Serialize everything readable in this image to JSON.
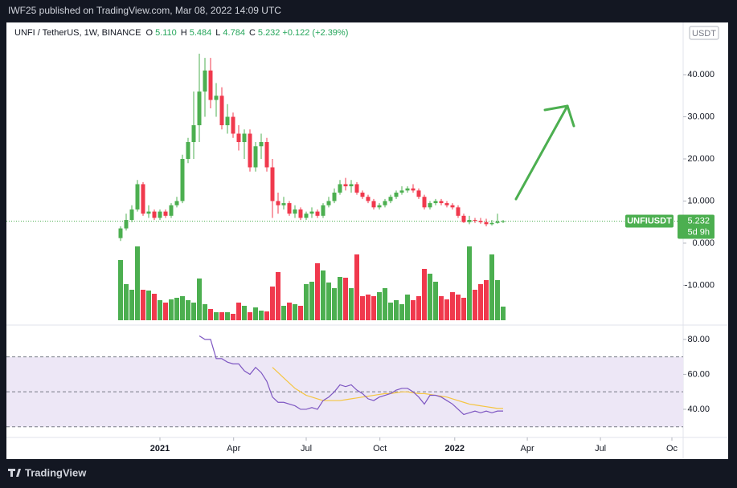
{
  "header": {
    "title": "IWF25 published on TradingView.com, Mar 08, 2022 14:09 UTC"
  },
  "footer": {
    "brand": "TradingView"
  },
  "chart_data": {
    "type": "candlestick",
    "symbol": "UNFI / TetherUS, 1W, BINANCE",
    "currency": "USDT",
    "ohlc_labels": [
      "O",
      "H",
      "L",
      "C"
    ],
    "ohlc": [
      5.11,
      5.484,
      4.784,
      5.232
    ],
    "ohlc_value_labels": [
      "5.110",
      "5.484",
      "4.784",
      "5.232"
    ],
    "change_label": "+0.122 (+2.39%)",
    "price_tag": {
      "name": "UNFIUSDT",
      "countdown": "5d 9h"
    },
    "up_color": "#4caf50",
    "down_color": "#f0394d",
    "open": [
      1.2,
      3.5,
      5.5,
      8,
      14,
      7,
      7.5,
      6,
      7.5,
      6.5,
      9,
      10,
      20,
      24,
      28,
      36,
      41,
      34,
      35,
      28,
      30,
      26,
      24,
      26,
      18,
      23,
      24,
      18,
      10,
      9,
      9.5,
      7,
      8,
      6,
      7,
      7.5,
      6.5,
      9,
      10,
      12,
      14,
      13.5,
      14,
      12,
      11,
      10,
      8.5,
      9,
      10,
      11,
      12,
      12.5,
      13,
      12.5,
      11,
      8.5,
      9.5,
      10,
      9.5,
      9,
      8.5,
      6.5,
      5,
      5.5,
      5.3,
      5,
      4.5,
      4.8,
      5.11
    ],
    "high": [
      4,
      7,
      9,
      15,
      14.5,
      9,
      8,
      8,
      8,
      9.5,
      11,
      21,
      25,
      36,
      45,
      44,
      44,
      38,
      37,
      33,
      31,
      28,
      27,
      27,
      24,
      26,
      25,
      20,
      12,
      11,
      10,
      9,
      8.5,
      7.5,
      8.5,
      8,
      9.5,
      11,
      13,
      15,
      15.5,
      15,
      14.5,
      12.5,
      11.5,
      10.5,
      9.5,
      10.5,
      11.5,
      12.5,
      13.5,
      13.5,
      14,
      13,
      11.5,
      10,
      10.5,
      10.5,
      10,
      9.5,
      9,
      7,
      6.5,
      6,
      6,
      5.8,
      5.5,
      7,
      5.484
    ],
    "low": [
      0.5,
      3,
      5,
      7.5,
      6.5,
      6,
      5.5,
      5.5,
      6,
      6,
      8.5,
      9.5,
      19,
      20,
      24,
      30,
      32,
      30,
      27,
      26,
      25,
      22,
      20,
      17,
      17,
      20,
      17,
      6,
      7,
      8,
      6.5,
      6,
      5.5,
      5.5,
      6,
      6,
      6,
      8.5,
      9.5,
      11.5,
      12.5,
      12,
      11.5,
      10.5,
      9.5,
      8,
      8,
      8.5,
      9.5,
      10.5,
      11.5,
      12,
      12,
      10.5,
      8,
      8,
      9,
      9,
      8.5,
      8,
      6,
      4.8,
      4.5,
      4.8,
      4.6,
      4,
      4.2,
      4.6,
      4.784
    ],
    "close": [
      3.5,
      5.5,
      8,
      14,
      7,
      7.5,
      6,
      7.5,
      6.5,
      9,
      10,
      20,
      24,
      28,
      36,
      41,
      34,
      35,
      28,
      30,
      26,
      24,
      26,
      18,
      23,
      24,
      18,
      10,
      9,
      9.5,
      7,
      8,
      6,
      7,
      7.5,
      6.5,
      9,
      10,
      12,
      14,
      13.5,
      14,
      12,
      11,
      10,
      8.5,
      9,
      10,
      11,
      12,
      12.5,
      13,
      12.5,
      11,
      8.5,
      9.5,
      10,
      9.5,
      9,
      8.5,
      6.5,
      5,
      5.5,
      5.3,
      5,
      4.5,
      4.8,
      5.11,
      5.232
    ],
    "xlim": [
      -20,
      100
    ],
    "xticks": [
      {
        "value": 7,
        "label": "2021"
      },
      {
        "value": 20.1,
        "label": "Apr"
      },
      {
        "value": 33,
        "label": "Jul"
      },
      {
        "value": 46.1,
        "label": "Oct"
      },
      {
        "value": 59.4,
        "label": "2022"
      },
      {
        "value": 72.3,
        "label": "Apr"
      },
      {
        "value": 85.3,
        "label": "Jul"
      },
      {
        "value": 98,
        "label": "Oc"
      }
    ],
    "ylim": [
      -18.5,
      52.4
    ],
    "yticks": [
      {
        "value": 40,
        "label": "40.000"
      },
      {
        "value": 30,
        "label": "30.000"
      },
      {
        "value": 20,
        "label": "20.000"
      },
      {
        "value": 10,
        "label": "10.000"
      },
      {
        "value": 0,
        "label": "0.000"
      },
      {
        "value": -10,
        "label": "-10.000"
      }
    ],
    "volume": {
      "ylim": [
        0,
        100
      ],
      "values": [
        75,
        45,
        38,
        92,
        38,
        37,
        33,
        25,
        22,
        26,
        28,
        30,
        25,
        22,
        52,
        20,
        14,
        10,
        10,
        10,
        8,
        22,
        18,
        10,
        16,
        12,
        11,
        42,
        60,
        18,
        22,
        20,
        18,
        45,
        48,
        71,
        62,
        47,
        40,
        54,
        53,
        40,
        82,
        30,
        32,
        30,
        35,
        40,
        22,
        25,
        20,
        32,
        25,
        30,
        64,
        58,
        48,
        30,
        26,
        35,
        32,
        28,
        92,
        38,
        45,
        50,
        82,
        50,
        17
      ]
    },
    "rsi": {
      "color": "#7e57c2",
      "ma_color": "#f5c542",
      "ylim": [
        26.2,
        90.5
      ],
      "band": [
        30,
        70
      ],
      "midline": 50,
      "yticks": [
        {
          "value": 80,
          "label": "80.00"
        },
        {
          "value": 60,
          "label": "60.00"
        },
        {
          "value": 40,
          "label": "40.00"
        }
      ],
      "values": [
        null,
        null,
        null,
        null,
        null,
        null,
        null,
        null,
        null,
        null,
        null,
        null,
        null,
        null,
        82,
        80,
        80,
        69,
        69,
        67,
        66,
        66,
        62,
        60,
        64,
        61,
        56,
        47,
        44,
        44,
        43,
        42,
        40,
        40,
        41,
        40,
        45,
        47,
        50,
        54,
        53,
        54,
        51,
        49,
        46,
        45,
        47,
        48,
        49,
        51,
        52,
        52,
        50,
        47,
        43,
        48,
        48,
        47,
        45,
        43,
        40,
        37,
        38,
        39,
        38,
        39,
        38,
        39,
        39
      ],
      "ma_values": [
        null,
        null,
        null,
        null,
        null,
        null,
        null,
        null,
        null,
        null,
        null,
        null,
        null,
        null,
        null,
        null,
        null,
        null,
        null,
        null,
        null,
        null,
        null,
        null,
        null,
        null,
        null,
        64,
        61,
        58,
        55,
        52,
        50,
        48,
        47,
        46,
        45,
        45,
        45,
        45,
        45.5,
        46,
        46.5,
        47,
        47.5,
        48,
        48.5,
        49,
        49,
        49.5,
        50,
        50,
        49.5,
        49,
        49,
        48.5,
        48,
        47.5,
        47,
        46,
        45,
        44,
        43,
        42.5,
        42,
        41.5,
        41,
        40.5,
        40.5
      ]
    }
  }
}
